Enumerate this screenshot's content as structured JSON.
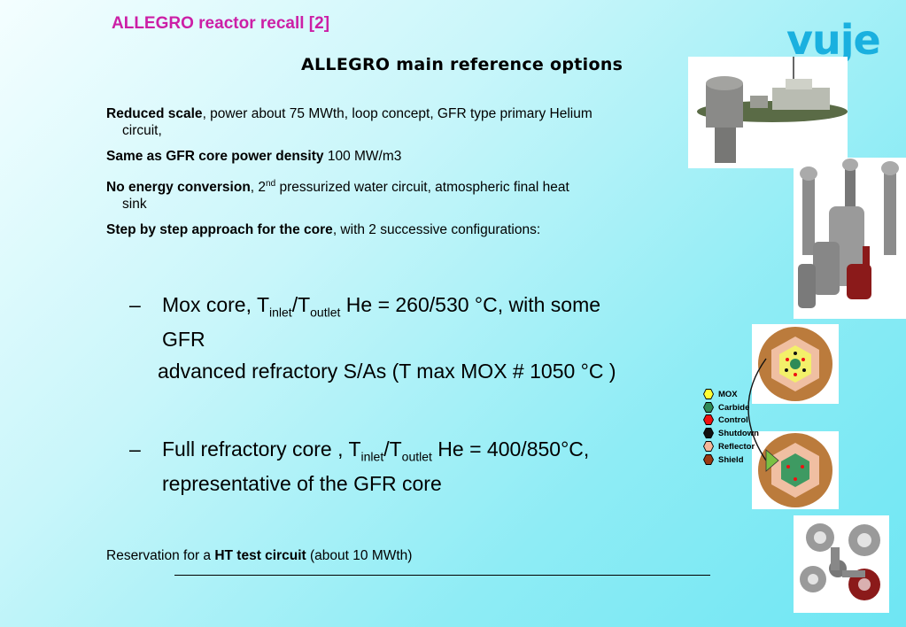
{
  "header": {
    "title": "ALLEGRO reactor recall [2]",
    "subtitle": "ALLEGRO main reference options",
    "logo": "vuje"
  },
  "bullets": [
    {
      "bold": "Reduced scale",
      "rest": ", power about 75 MWth, loop concept, GFR type primary Helium",
      "cont": "circuit,"
    },
    {
      "bold": "Same as GFR core power density",
      "rest": " 100 MW/m3"
    },
    {
      "bold": "No energy conversion",
      "rest_a": ", 2",
      "sup": "nd",
      "rest_b": " pressurized water circuit, atmospheric final heat",
      "cont": "sink"
    },
    {
      "bold": "Step by step approach for the core",
      "rest": ", with 2 successive configurations:"
    }
  ],
  "configs": {
    "mox": {
      "dash": "–",
      "a": "Mox core, T",
      "sub1": "inlet",
      "b": "/T",
      "sub2": "outlet",
      "c": " He = 260/530 °C,   with some",
      "cont": "GFR",
      "line3": "advanced refractory S/As (T max MOX # 1050 °C )"
    },
    "refractory": {
      "dash": "–",
      "a": "Full refractory core , T",
      "sub1": "inlet",
      "b": "/T",
      "sub2": "outlet",
      "c": " He = 400/850°C,",
      "cont": "representative of the GFR core"
    }
  },
  "reservation": {
    "a": "Reservation for a  ",
    "bold": "HT test circuit",
    "b": " (about 10 MWth)"
  },
  "legend": [
    {
      "label": "MOX",
      "color": "#ffff33"
    },
    {
      "label": "Carbide",
      "color": "#2e8b57"
    },
    {
      "label": "Control",
      "color": "#ee1111"
    },
    {
      "label": "Shutdown",
      "color": "#111111"
    },
    {
      "label": "Reflector",
      "color": "#f4b79a"
    },
    {
      "label": "Shield",
      "color": "#9a3a14"
    }
  ]
}
